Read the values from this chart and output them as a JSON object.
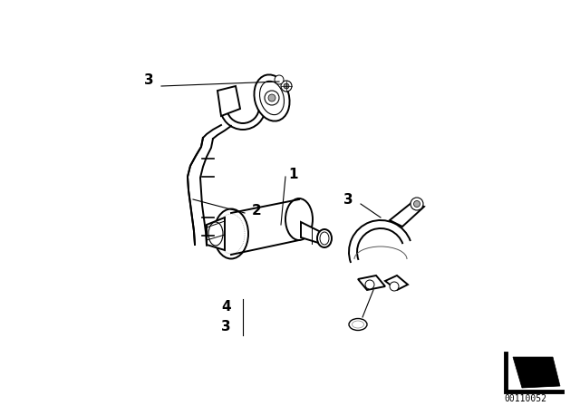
{
  "background_color": "#ffffff",
  "diagram_id": "00110052",
  "line_color": "#000000",
  "label_fontsize": 11,
  "label_fontsize_small": 7
}
